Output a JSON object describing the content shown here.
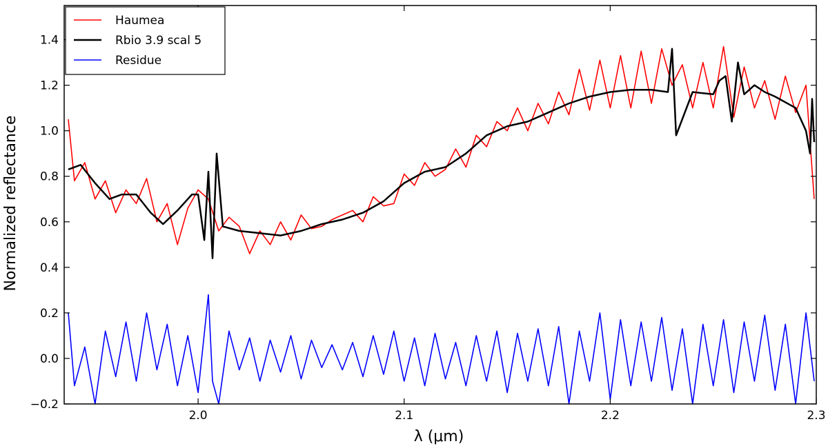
{
  "chart_data": {
    "type": "line",
    "xlabel": "λ (μm)",
    "ylabel": "Normalized reflectance",
    "xlim": [
      1.935,
      2.3
    ],
    "ylim": [
      -0.2,
      1.55
    ],
    "xticks": [
      2.0,
      2.1,
      2.2,
      2.3
    ],
    "xtick_labels": [
      "2.0",
      "2.1",
      "2.2",
      "2.3"
    ],
    "yticks": [
      -0.2,
      0.0,
      0.2,
      0.4,
      0.6,
      0.8,
      1.0,
      1.2,
      1.4
    ],
    "ytick_labels": [
      "−0.2",
      "0.0",
      "0.2",
      "0.4",
      "0.6",
      "0.8",
      "1.0",
      "1.2",
      "1.4"
    ],
    "grid": false,
    "legend_position": "top-left",
    "series": [
      {
        "name": "Haumea",
        "color": "#ff0000",
        "x": [
          1.937,
          1.94,
          1.945,
          1.95,
          1.955,
          1.96,
          1.965,
          1.97,
          1.975,
          1.98,
          1.985,
          1.99,
          1.995,
          2.0,
          2.005,
          2.01,
          2.015,
          2.02,
          2.025,
          2.03,
          2.035,
          2.04,
          2.045,
          2.05,
          2.055,
          2.06,
          2.065,
          2.07,
          2.075,
          2.08,
          2.085,
          2.09,
          2.095,
          2.1,
          2.105,
          2.11,
          2.115,
          2.12,
          2.125,
          2.13,
          2.135,
          2.14,
          2.145,
          2.15,
          2.155,
          2.16,
          2.165,
          2.17,
          2.175,
          2.18,
          2.185,
          2.19,
          2.195,
          2.2,
          2.205,
          2.21,
          2.215,
          2.22,
          2.225,
          2.23,
          2.235,
          2.24,
          2.245,
          2.25,
          2.255,
          2.26,
          2.265,
          2.27,
          2.275,
          2.28,
          2.285,
          2.29,
          2.295,
          2.299
        ],
        "y": [
          1.05,
          0.78,
          0.86,
          0.7,
          0.78,
          0.64,
          0.74,
          0.68,
          0.79,
          0.6,
          0.68,
          0.5,
          0.66,
          0.74,
          0.7,
          0.56,
          0.62,
          0.58,
          0.46,
          0.56,
          0.5,
          0.6,
          0.52,
          0.63,
          0.57,
          0.58,
          0.61,
          0.63,
          0.65,
          0.6,
          0.71,
          0.67,
          0.68,
          0.81,
          0.76,
          0.86,
          0.8,
          0.83,
          0.92,
          0.84,
          0.98,
          0.93,
          1.04,
          1.0,
          1.1,
          1.0,
          1.12,
          1.03,
          1.17,
          1.07,
          1.27,
          1.09,
          1.31,
          1.1,
          1.33,
          1.1,
          1.35,
          1.12,
          1.36,
          1.2,
          1.29,
          1.1,
          1.3,
          1.1,
          1.37,
          1.06,
          1.28,
          1.1,
          1.22,
          1.05,
          1.24,
          1.08,
          1.2,
          0.7
        ]
      },
      {
        "name": "Rbio 3.9 scal 5",
        "color": "#000000",
        "x": [
          1.937,
          1.943,
          1.95,
          1.957,
          1.963,
          1.97,
          1.977,
          1.983,
          1.99,
          1.997,
          2.0,
          2.003,
          2.005,
          2.007,
          2.009,
          2.012,
          2.02,
          2.03,
          2.04,
          2.05,
          2.06,
          2.07,
          2.08,
          2.09,
          2.1,
          2.11,
          2.12,
          2.13,
          2.14,
          2.15,
          2.16,
          2.17,
          2.18,
          2.19,
          2.2,
          2.21,
          2.22,
          2.228,
          2.23,
          2.232,
          2.24,
          2.25,
          2.253,
          2.256,
          2.259,
          2.262,
          2.265,
          2.27,
          2.275,
          2.28,
          2.29,
          2.295,
          2.297,
          2.298,
          2.299
        ],
        "y": [
          0.83,
          0.85,
          0.77,
          0.7,
          0.72,
          0.72,
          0.64,
          0.59,
          0.65,
          0.72,
          0.72,
          0.52,
          0.82,
          0.44,
          0.9,
          0.58,
          0.56,
          0.55,
          0.54,
          0.56,
          0.59,
          0.61,
          0.64,
          0.69,
          0.77,
          0.82,
          0.84,
          0.9,
          0.98,
          1.02,
          1.04,
          1.08,
          1.12,
          1.15,
          1.17,
          1.18,
          1.18,
          1.17,
          1.36,
          0.98,
          1.17,
          1.16,
          1.22,
          1.24,
          1.04,
          1.3,
          1.16,
          1.2,
          1.17,
          1.15,
          1.1,
          1.0,
          0.9,
          1.14,
          0.95
        ]
      },
      {
        "name": "Residue",
        "color": "#0000ff",
        "x": [
          1.937,
          1.94,
          1.945,
          1.95,
          1.955,
          1.96,
          1.965,
          1.97,
          1.975,
          1.98,
          1.985,
          1.99,
          1.995,
          2.0,
          2.005,
          2.007,
          2.01,
          2.015,
          2.02,
          2.025,
          2.03,
          2.035,
          2.04,
          2.045,
          2.05,
          2.055,
          2.06,
          2.065,
          2.07,
          2.075,
          2.08,
          2.085,
          2.09,
          2.095,
          2.1,
          2.105,
          2.11,
          2.115,
          2.12,
          2.125,
          2.13,
          2.135,
          2.14,
          2.145,
          2.15,
          2.155,
          2.16,
          2.165,
          2.17,
          2.175,
          2.18,
          2.185,
          2.19,
          2.195,
          2.2,
          2.205,
          2.21,
          2.215,
          2.22,
          2.225,
          2.23,
          2.235,
          2.24,
          2.245,
          2.25,
          2.255,
          2.26,
          2.265,
          2.27,
          2.275,
          2.28,
          2.285,
          2.29,
          2.295,
          2.299
        ],
        "y": [
          0.2,
          -0.12,
          0.05,
          -0.2,
          0.12,
          -0.08,
          0.16,
          -0.1,
          0.2,
          -0.05,
          0.15,
          -0.12,
          0.1,
          -0.15,
          0.28,
          -0.1,
          -0.2,
          0.12,
          -0.05,
          0.09,
          -0.1,
          0.08,
          -0.06,
          0.1,
          -0.09,
          0.08,
          -0.04,
          0.06,
          -0.05,
          0.07,
          -0.08,
          0.1,
          -0.07,
          0.12,
          -0.1,
          0.09,
          -0.12,
          0.11,
          -0.09,
          0.07,
          -0.12,
          0.1,
          -0.1,
          0.12,
          -0.15,
          0.11,
          -0.1,
          0.13,
          -0.12,
          0.14,
          -0.2,
          0.12,
          -0.1,
          0.2,
          -0.18,
          0.17,
          -0.12,
          0.16,
          -0.1,
          0.18,
          -0.14,
          0.13,
          -0.2,
          0.15,
          -0.12,
          0.17,
          -0.15,
          0.16,
          -0.1,
          0.19,
          -0.14,
          0.15,
          -0.2,
          0.2,
          -0.1
        ]
      }
    ]
  }
}
